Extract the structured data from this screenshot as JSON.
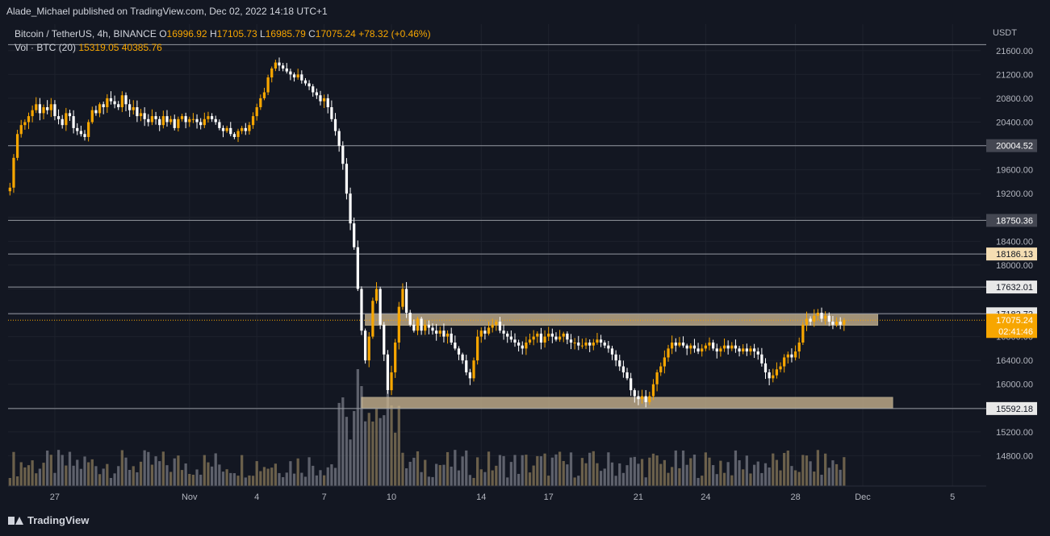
{
  "header": {
    "published": "Alade_Michael published on TradingView.com, Dec 02, 2022 14:18 UTC+1",
    "symbol": "Bitcoin / TetherUS, 4h, BINANCE",
    "ohlc": {
      "o_label": "O",
      "o": "16996.92",
      "h_label": "H",
      "h": "17105.73",
      "l_label": "L",
      "l": "16985.79",
      "c_label": "C",
      "c": "17075.24",
      "chg": "+78.32 (+0.46%)"
    },
    "vol_label": "Vol · BTC (20)",
    "vol_value": "15319.05",
    "vol_ma": "40385.76"
  },
  "footer": {
    "brand": "TradingView"
  },
  "colors": {
    "background": "#131722",
    "grid": "#1e222d",
    "text": "#b2b5be",
    "up": "#f7a600",
    "down": "#ffffff",
    "zone": "#c9b48f",
    "line": "#9598a1",
    "badge": "#434651",
    "last": "#f7a600"
  },
  "chart_data": {
    "type": "candlestick",
    "title": "Bitcoin / TetherUS, 4h, BINANCE",
    "currency": "USDT",
    "ylim": [
      14400,
      21800
    ],
    "y_ticks": [
      14800,
      15200,
      15600,
      16000,
      16400,
      16800,
      17200,
      17600,
      18000,
      18400,
      18800,
      19200,
      19600,
      20000,
      20400,
      20800,
      21200,
      21600
    ],
    "x_ticks": [
      {
        "label": "27",
        "idx": 12
      },
      {
        "label": "Nov",
        "idx": 48
      },
      {
        "label": "4",
        "idx": 66
      },
      {
        "label": "7",
        "idx": 84
      },
      {
        "label": "10",
        "idx": 102
      },
      {
        "label": "14",
        "idx": 126
      },
      {
        "label": "17",
        "idx": 144
      },
      {
        "label": "21",
        "idx": 168
      },
      {
        "label": "24",
        "idx": 186
      },
      {
        "label": "28",
        "idx": 210
      },
      {
        "label": "Dec",
        "idx": 228
      },
      {
        "label": "5",
        "idx": 252
      }
    ],
    "total_slots": 260,
    "horizontal_levels": [
      {
        "value": 21700,
        "label": ""
      },
      {
        "value": 20004.52,
        "label": "20004.52"
      },
      {
        "value": 18750.36,
        "label": "18750.36"
      },
      {
        "value": 18186.13,
        "label": "18186.13"
      },
      {
        "value": 17632.01,
        "label": "17632.01"
      },
      {
        "value": 17182.72,
        "label": "17182.72"
      },
      {
        "value": 15592.18,
        "label": "15592.18"
      }
    ],
    "zones": [
      {
        "from_idx": 95,
        "to_idx": 232,
        "low": 16990,
        "high": 17180
      },
      {
        "from_idx": 94,
        "to_idx": 236,
        "low": 15600,
        "high": 15780
      }
    ],
    "last_price": {
      "value": 17075.24,
      "label": "17075.24",
      "countdown": "02:41:46"
    },
    "closes": [
      19300,
      19800,
      20200,
      20350,
      20400,
      20500,
      20600,
      20700,
      20550,
      20650,
      20600,
      20700,
      20500,
      20450,
      20350,
      20550,
      20500,
      20300,
      20250,
      20200,
      20150,
      20400,
      20600,
      20550,
      20700,
      20650,
      20800,
      20750,
      20700,
      20650,
      20850,
      20700,
      20600,
      20650,
      20500,
      20550,
      20450,
      20400,
      20500,
      20450,
      20350,
      20500,
      20400,
      20450,
      20300,
      20450,
      20500,
      20400,
      20450,
      20450,
      20400,
      20350,
      20450,
      20500,
      20450,
      20400,
      20300,
      20250,
      20300,
      20200,
      20150,
      20250,
      20300,
      20250,
      20350,
      20500,
      20650,
      20800,
      20900,
      21150,
      21300,
      21400,
      21350,
      21300,
      21250,
      21200,
      21150,
      21200,
      21100,
      21050,
      21000,
      20900,
      20850,
      20750,
      20800,
      20650,
      20450,
      20250,
      20000,
      19700,
      19200,
      18700,
      18300,
      17600,
      16900,
      16400,
      16800,
      17400,
      17600,
      17000,
      16500,
      15900,
      16200,
      16700,
      17300,
      17600,
      17200,
      17000,
      16900,
      17100,
      16900,
      17000,
      16950,
      16900,
      16850,
      16900,
      16800,
      16850,
      16700,
      16600,
      16500,
      16400,
      16200,
      16100,
      16400,
      16800,
      16900,
      16850,
      16950,
      17000,
      17050,
      16900,
      16850,
      16800,
      16750,
      16700,
      16650,
      16600,
      16700,
      16750,
      16800,
      16850,
      16700,
      16800,
      16850,
      16800,
      16750,
      16800,
      16850,
      16750,
      16700,
      16700,
      16650,
      16650,
      16700,
      16650,
      16700,
      16750,
      16700,
      16650,
      16600,
      16500,
      16400,
      16300,
      16200,
      16100,
      15900,
      15800,
      15750,
      15800,
      15700,
      15800,
      16000,
      16200,
      16300,
      16450,
      16600,
      16700,
      16650,
      16700,
      16650,
      16600,
      16650,
      16600,
      16550,
      16600,
      16650,
      16700,
      16600,
      16550,
      16600,
      16650,
      16600,
      16650,
      16600,
      16550,
      16600,
      16550,
      16600,
      16550,
      16500,
      16350,
      16200,
      16100,
      16150,
      16250,
      16300,
      16450,
      16500,
      16450,
      16550,
      16700,
      17000,
      17100,
      17050,
      17150,
      17200,
      17100,
      17150,
      17050,
      17000,
      17050,
      17000,
      17075
    ]
  }
}
